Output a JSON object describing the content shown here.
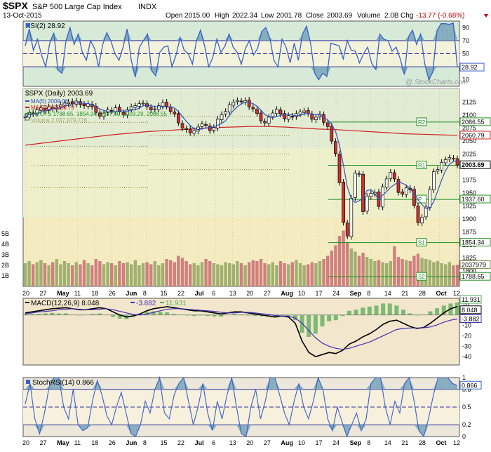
{
  "header": {
    "symbol": "$SPX",
    "name": "S&P 500 Large Cap Index",
    "exchange": "INDX",
    "date": "13-Oct-2015",
    "open_label": "Open",
    "open": "2015.00",
    "high_label": "High",
    "high": "2022.34",
    "low_label": "Low",
    "low": "2001.78",
    "close_label": "Close",
    "close": "2003.69",
    "volume_label": "Volume",
    "volume": "2.0B",
    "chg_label": "Chg",
    "chg": "-13.77 (-0.68%)",
    "watermark": "@ StockCharts.com"
  },
  "colors": {
    "up": "#ffffff",
    "down": "#d03030",
    "ma5": "#3050c0",
    "ma200": "#d02020",
    "pivot": "#209020",
    "rsi": "#3a5fc8",
    "macd": "#000000",
    "signal": "#4030b0",
    "hist": "#55aa55",
    "vol_up": "#a0b070",
    "vol_down": "#d08080"
  },
  "chart_data": [
    {
      "type": "line",
      "panel": "rsi",
      "title": "RSI(2) 28.92",
      "y_ticks": [
        "90",
        "70",
        "50",
        "30",
        "10"
      ],
      "ylim": [
        0,
        100
      ],
      "last_value": "28.92",
      "overbought": 90,
      "oversold": 10,
      "series": [
        {
          "name": "RSI(2)",
          "values": [
            62,
            88,
            55,
            72,
            48,
            30,
            66,
            82,
            25,
            20,
            70,
            90,
            64,
            80,
            52,
            40,
            70,
            58,
            30,
            64,
            82,
            70,
            50,
            40,
            60,
            88,
            40,
            14,
            60,
            70,
            80,
            24,
            16,
            52,
            60,
            62,
            30,
            48,
            75,
            55,
            50,
            34,
            70,
            86,
            62,
            30,
            44,
            72,
            52,
            62,
            80,
            60,
            52,
            34,
            58,
            70,
            48,
            58,
            84,
            90,
            74,
            40,
            30,
            72,
            60,
            36,
            66,
            40,
            80,
            92,
            66,
            20,
            10,
            20,
            15,
            66,
            64,
            62,
            42,
            70,
            55,
            54,
            36,
            50,
            60,
            35,
            26,
            80,
            72,
            70,
            54,
            60,
            42,
            18,
            76,
            86,
            64,
            80,
            35,
            10,
            22,
            85,
            96,
            96,
            95,
            97,
            28.92
          ]
        }
      ]
    },
    {
      "type": "candlestick",
      "panel": "price",
      "title": "$SPX (Daily) 2003.69",
      "legend": [
        "MA(5) 2009.06",
        "MA(200) 2060.79",
        "PIVOTS 1788.65, 1854.34, 1937.60, 2003.29, 2086.55",
        "Volume 2,037,979,776"
      ],
      "ylim": [
        1770,
        2150
      ],
      "y_ticks": [
        "2125",
        "2100",
        "2075",
        "2050",
        "2025",
        "2000",
        "1975",
        "1950",
        "1925",
        "1900",
        "1875",
        "1850",
        "1825",
        "1800"
      ],
      "volume_ticks": [
        "5B",
        "4B",
        "3B",
        "2B",
        "1B"
      ],
      "x_labels": [
        "20",
        "27",
        "May",
        "11",
        "18",
        "26",
        "Jun",
        "8",
        "15",
        "22",
        "Jul",
        "6",
        "13",
        "20",
        "27",
        "Aug",
        "10",
        "17",
        "24",
        "Sep",
        "8",
        "14",
        "21",
        "28",
        "Oct",
        "12"
      ],
      "right_labels": [
        "2086.55",
        "2060.79",
        "2003.69",
        "1937.60",
        "1854.34",
        "2037979",
        "1788.65"
      ],
      "pivot_labels": [
        "R2",
        "R1",
        "P",
        "S1",
        "S2"
      ],
      "pivots": {
        "R2": 2086.55,
        "R1": 2003.29,
        "P": 1937.6,
        "S1": 1854.34,
        "S2": 1788.65
      },
      "ma200": [
        2042,
        2046,
        2050,
        2054,
        2058,
        2062,
        2065,
        2068,
        2070,
        2072,
        2074,
        2076,
        2077,
        2078,
        2078,
        2077,
        2075,
        2073,
        2072,
        2070,
        2068,
        2066,
        2064,
        2063,
        2062,
        2061
      ],
      "closes": [
        2097,
        2105,
        2102,
        2110,
        2114,
        2108,
        2116,
        2112,
        2115,
        2120,
        2123,
        2125,
        2122,
        2127,
        2120,
        2118,
        2122,
        2116,
        2105,
        2098,
        2104,
        2110,
        2108,
        2114,
        2106,
        2101,
        2110,
        2116,
        2118,
        2122,
        2123,
        2116,
        2110,
        2112,
        2118,
        2124,
        2117,
        2107,
        2102,
        2085,
        2075,
        2072,
        2066,
        2070,
        2077,
        2083,
        2080,
        2070,
        2076,
        2092,
        2101,
        2107,
        2120,
        2125,
        2128,
        2126,
        2128,
        2116,
        2112,
        2103,
        2089,
        2085,
        2096,
        2104,
        2111,
        2102,
        2093,
        2099,
        2096,
        2103,
        2106,
        2108,
        2103,
        2092,
        2096,
        2102,
        2086,
        2078,
        2050,
        2026,
        1970,
        1893,
        1867,
        1940,
        1988,
        1987,
        1914,
        1944,
        1949,
        1951,
        1924,
        1962,
        1977,
        1990,
        1977,
        1951,
        1948,
        1960,
        1956,
        1926,
        1893,
        1903,
        1923,
        1957,
        1991,
        1995,
        2009,
        2014,
        2018,
        2017,
        2003.69
      ],
      "volumes": [
        2.2,
        2.4,
        2.1,
        2.3,
        2.5,
        2.2,
        2.0,
        2.3,
        2.6,
        2.1,
        2.4,
        2.2,
        2.0,
        2.3,
        2.1,
        2.5,
        2.2,
        2.0,
        2.6,
        2.4,
        2.1,
        2.3,
        2.2,
        2.0,
        2.4,
        2.2,
        2.3,
        2.1,
        2.5,
        2.0,
        2.2,
        2.3,
        2.1,
        2.4,
        2.0,
        2.2,
        2.6,
        2.5,
        2.3,
        2.9,
        2.7,
        2.4,
        2.1,
        2.2,
        2.0,
        2.3,
        2.6,
        2.4,
        2.2,
        2.1,
        2.0,
        2.3,
        2.2,
        2.1,
        2.4,
        2.2,
        2.0,
        2.3,
        2.5,
        2.4,
        2.6,
        2.2,
        2.1,
        2.3,
        2.0,
        2.4,
        2.2,
        2.1,
        2.3,
        2.5,
        2.2,
        2.0,
        2.1,
        2.3,
        2.2,
        2.4,
        2.6,
        2.9,
        3.4,
        3.9,
        4.8,
        5.3,
        4.2,
        3.6,
        3.3,
        2.9,
        3.2,
        2.8,
        2.6,
        2.4,
        2.5,
        2.3,
        2.2,
        2.4,
        3.8,
        2.8,
        2.6,
        2.5,
        2.4,
        2.9,
        3.1,
        2.7,
        2.6,
        2.5,
        2.3,
        2.4,
        2.2,
        2.1,
        2.3,
        2.0,
        2.04
      ]
    },
    {
      "type": "line",
      "panel": "macd",
      "title": "MACD(12,26,9) 8.048, -3.882, 11.931",
      "legend": [
        "MACD(12,26,9) 8.048",
        "-3.882",
        "11.931"
      ],
      "ylim": [
        -48,
        16
      ],
      "y_ticks": [
        "10",
        "0",
        "-10",
        "-20",
        "-30",
        "-40"
      ],
      "right_labels": [
        "11.931",
        "8.048",
        "-3.882"
      ],
      "series": [
        {
          "name": "MACD",
          "values": [
            2,
            3,
            4,
            5,
            6,
            6.5,
            7,
            6,
            5,
            5,
            6,
            7,
            6,
            3,
            0,
            -2,
            -1,
            1,
            4,
            6,
            7,
            8,
            7,
            6,
            5,
            4,
            4,
            3,
            2,
            1,
            2,
            3,
            3,
            2,
            1,
            0,
            -1,
            -2,
            -1,
            -2,
            -8,
            -25,
            -36,
            -40,
            -38,
            -36,
            -37,
            -34,
            -28,
            -25,
            -21,
            -18,
            -14,
            -9,
            -6,
            -5,
            -8,
            -11,
            -13,
            -12,
            -8,
            -3,
            2,
            6,
            8.048
          ]
        },
        {
          "name": "Signal",
          "values": [
            1,
            2,
            3,
            3.5,
            4,
            5,
            5.5,
            6,
            5.5,
            5,
            5,
            5.5,
            6,
            5,
            3.5,
            2,
            0.5,
            0,
            1,
            2.5,
            4,
            5.5,
            6,
            6,
            5.5,
            5,
            4.5,
            4,
            3.5,
            2.5,
            2,
            2,
            2.5,
            2.5,
            2,
            1.2,
            0.5,
            -0.5,
            -1,
            -1.2,
            -3,
            -8,
            -15,
            -22,
            -27,
            -30,
            -32,
            -33,
            -32,
            -30,
            -28,
            -26,
            -23,
            -20,
            -17,
            -14,
            -13,
            -12.5,
            -12.5,
            -12.3,
            -11.5,
            -9.5,
            -7,
            -5,
            -3.882
          ]
        },
        {
          "name": "Histogram",
          "values": [
            1,
            1,
            1,
            1.5,
            2,
            1.5,
            1.5,
            0,
            -0.5,
            0,
            1,
            1.5,
            0,
            -2,
            -3.5,
            -4,
            -1.5,
            1,
            3,
            3.5,
            3,
            2.5,
            1,
            0,
            -0.5,
            -1,
            -0.5,
            -1,
            -1.5,
            -1.5,
            0,
            1,
            0.5,
            -0.5,
            -1,
            -1.2,
            -1.5,
            -1.5,
            0,
            -0.8,
            -5,
            -17,
            -21,
            -18,
            -11,
            -6,
            -5,
            -1,
            4,
            5,
            7,
            8,
            9,
            11,
            11,
            9,
            5,
            1.5,
            -0.5,
            0.3,
            3.5,
            6.5,
            9,
            11,
            11.931
          ]
        }
      ]
    },
    {
      "type": "line",
      "panel": "stochrsi",
      "title": "StochRSI(14) 0.866",
      "ylim": [
        0,
        1
      ],
      "y_ticks": [
        "1",
        "0.8",
        "0.5",
        "0.2",
        "0"
      ],
      "right_labels": [
        "0.866"
      ],
      "x_labels": [
        "20",
        "27",
        "May",
        "11",
        "18",
        "26",
        "Jun",
        "8",
        "15",
        "22",
        "Jul",
        "6",
        "13",
        "20",
        "27",
        "Aug",
        "10",
        "17",
        "24",
        "Sep",
        "8",
        "14",
        "21",
        "28",
        "Oct",
        "12"
      ],
      "series": [
        {
          "name": "StochRSI(14)",
          "values": [
            0.55,
            0.9,
            0.3,
            0.05,
            0.4,
            0.85,
            1,
            1,
            0.5,
            0.3,
            0.8,
            0.2,
            0.1,
            0.15,
            0.6,
            0.95,
            0.7,
            0.35,
            0.2,
            0.5,
            0.75,
            0.4,
            0.05,
            0,
            0.2,
            0.6,
            0.4,
            0.8,
            1,
            0.4,
            0.3,
            0.7,
            0.9,
            1,
            0.6,
            0.2,
            0.5,
            0.9,
            0.4,
            0.1,
            0.6,
            0.3,
            0.7,
            1,
            0.5,
            0.05,
            0,
            0.5,
            0.8,
            0.3,
            0.6,
            1,
            1,
            0.7,
            0.4,
            0.2,
            0.6,
            0.9,
            0.5,
            0.3,
            0.6,
            1,
            0.8,
            0.3,
            0.1,
            0.5,
            0.25,
            0,
            0.2,
            0.4,
            0.1,
            0.3,
            0.9,
            1,
            1,
            0.5,
            0.2,
            0.6,
            0.4,
            0.9,
            1,
            0.6,
            0.1,
            0,
            0.3,
            0.7,
            1,
            1,
            1,
            0.9,
            0.866
          ]
        }
      ]
    }
  ]
}
